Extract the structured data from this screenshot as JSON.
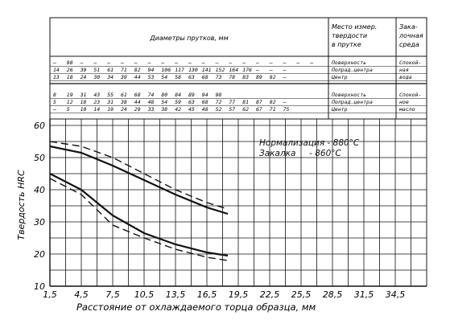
{
  "chart_data": {
    "type": "line",
    "ylabel": "Твердость HRC",
    "xlabel": "Расстояние от охлаждаемого торца образца, мм",
    "x_ticks": [
      "1,5",
      "4,5",
      "7,5",
      "10,5",
      "13,5",
      "16,5",
      "19,5",
      "22,5",
      "25,5",
      "28,5",
      "31,5",
      "34,5"
    ],
    "y_ticks": [
      "10",
      "20",
      "30",
      "40",
      "50",
      "60"
    ],
    "xlim": [
      1.5,
      37.5
    ],
    "ylim": [
      10,
      62
    ],
    "annotations": [
      "Нормализация - 880°С",
      "Закалка     - 860°С"
    ],
    "header": {
      "diameters_title": "Диаметры прутков, мм",
      "place_title": "Место измер. твердости в прутке",
      "medium_title": "Закалочная среда"
    },
    "table_rows": [
      {
        "values": [
          "—",
          "98",
          "—",
          "—",
          "—",
          "—",
          "—",
          "—",
          "—",
          "—",
          "—",
          "—",
          "—",
          "—",
          "—",
          "—",
          "—",
          "—",
          "—",
          "—"
        ],
        "place": "Поверхность",
        "medium": "Спокой-"
      },
      {
        "values": [
          "14",
          "26",
          "39",
          "51",
          "61",
          "71",
          "82",
          "94",
          "106",
          "117",
          "130",
          "141",
          "152",
          "164",
          "176",
          "—",
          "—",
          "—"
        ],
        "place": "Полрад.центра",
        "medium": "ная"
      },
      {
        "values": [
          "13",
          "18",
          "24",
          "30",
          "34",
          "39",
          "44",
          "53",
          "54",
          "58",
          "63",
          "68",
          "73",
          "78",
          "83",
          "89",
          "92",
          "—"
        ],
        "place": "Центр",
        "medium": "вода"
      },
      {
        "values": [
          "8",
          "19",
          "31",
          "43",
          "55",
          "61",
          "68",
          "74",
          "80",
          "84",
          "89",
          "94",
          "98"
        ],
        "place": "Поверхность",
        "medium": "Спокой-"
      },
      {
        "values": [
          "5",
          "12",
          "18",
          "23",
          "31",
          "38",
          "44",
          "48",
          "54",
          "59",
          "63",
          "68",
          "72",
          "77",
          "81",
          "87",
          "92",
          "—"
        ],
        "place": "Полрад.центра",
        "medium": "ное"
      },
      {
        "values": [
          "—",
          "5",
          "10",
          "14",
          "19",
          "24",
          "29",
          "33",
          "38",
          "42",
          "45",
          "48",
          "52",
          "57",
          "62",
          "67",
          "71",
          "75"
        ],
        "place": "Центр",
        "medium": "масло"
      }
    ],
    "series": [
      {
        "style": "solid",
        "x": [
          1.5,
          4.5,
          7.5,
          10.5,
          13.5,
          16.5,
          18.5
        ],
        "y": [
          53.5,
          51.5,
          47.5,
          43,
          38.5,
          34.5,
          32.5
        ]
      },
      {
        "style": "dashed",
        "x": [
          1.5,
          4.5,
          7.5,
          10.5,
          13.5,
          16.5,
          18.5
        ],
        "y": [
          55,
          53.5,
          50,
          45,
          40,
          36,
          34
        ]
      },
      {
        "style": "solid",
        "x": [
          1.5,
          4.5,
          7.5,
          10.5,
          13.5,
          16.5,
          18.5
        ],
        "y": [
          45,
          40,
          32,
          26.5,
          23,
          20.5,
          19.5
        ]
      },
      {
        "style": "dashed",
        "x": [
          1.5,
          4.5,
          7.5,
          10.5,
          13.5,
          16.5,
          18.5
        ],
        "y": [
          43.5,
          38.5,
          29,
          25,
          21.5,
          19,
          18
        ]
      }
    ]
  }
}
